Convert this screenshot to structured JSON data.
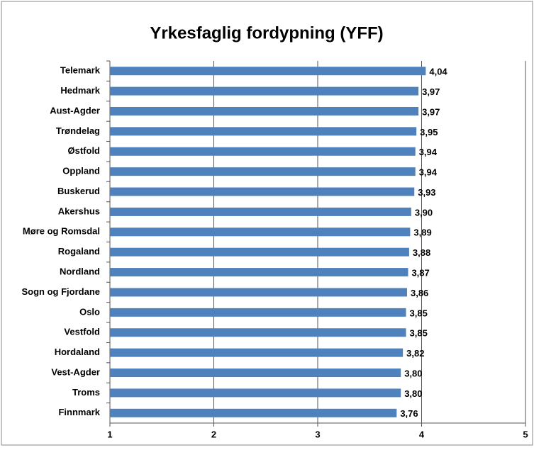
{
  "chart_data": {
    "type": "bar",
    "orientation": "horizontal",
    "title": "Yrkesfaglig fordypning (YFF)",
    "categories": [
      "Telemark",
      "Hedmark",
      "Aust-Agder",
      "Trøndelag",
      "Østfold",
      "Oppland",
      "Buskerud",
      "Akershus",
      "Møre og Romsdal",
      "Rogaland",
      "Nordland",
      "Sogn og Fjordane",
      "Oslo",
      "Vestfold",
      "Hordaland",
      "Vest-Agder",
      "Troms",
      "Finnmark"
    ],
    "values": [
      4.04,
      3.97,
      3.97,
      3.95,
      3.94,
      3.94,
      3.93,
      3.9,
      3.89,
      3.88,
      3.87,
      3.86,
      3.85,
      3.85,
      3.82,
      3.8,
      3.8,
      3.76
    ],
    "value_labels": [
      "4,04",
      "3,97",
      "3,97",
      "3,95",
      "3,94",
      "3,94",
      "3,93",
      "3,90",
      "3,89",
      "3,88",
      "3,87",
      "3,86",
      "3,85",
      "3,85",
      "3,82",
      "3,80",
      "3,80",
      "3,76"
    ],
    "color": "#4f81bd",
    "xlim": [
      1,
      5
    ],
    "xticks": [
      1,
      2,
      3,
      4,
      5
    ],
    "grid": true
  }
}
